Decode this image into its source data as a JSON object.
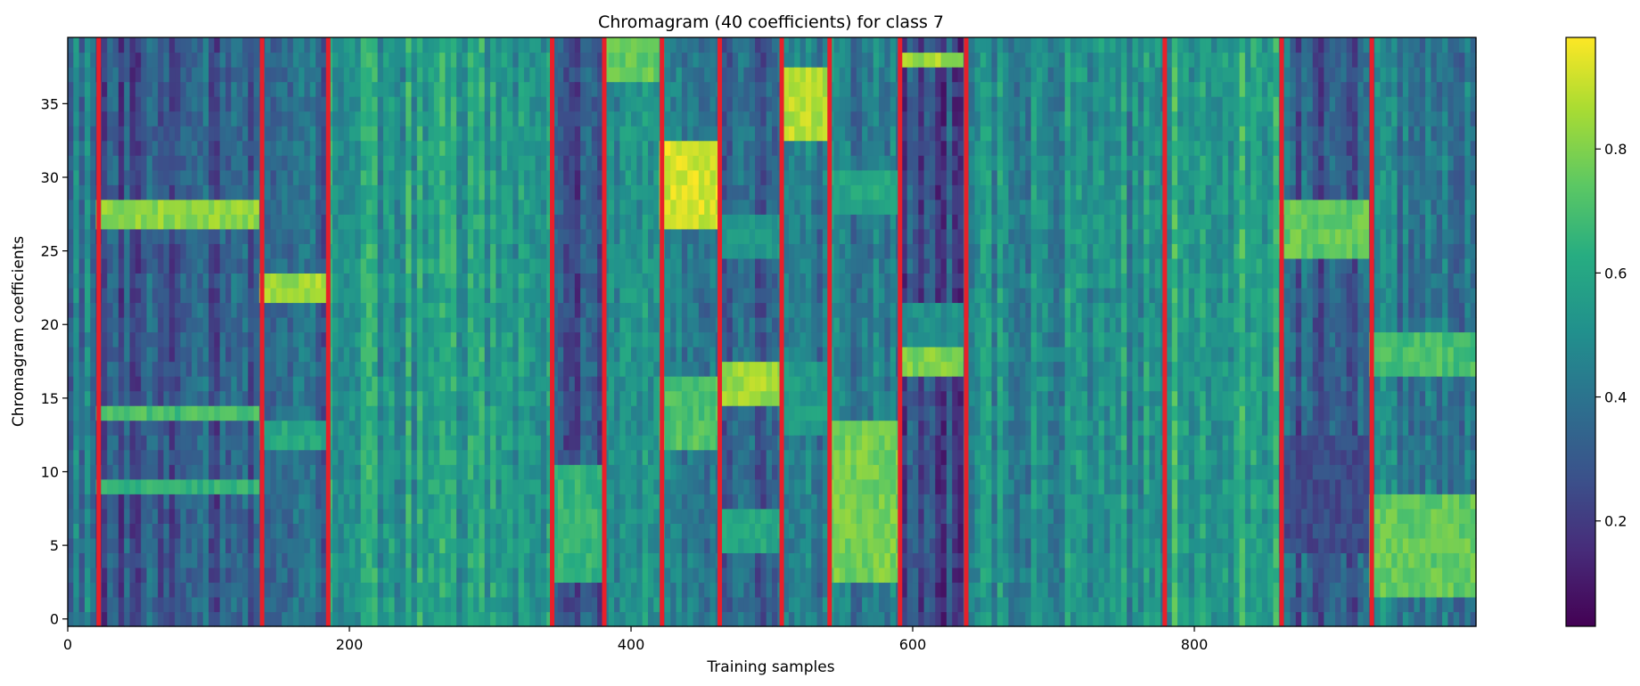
{
  "chart_data": {
    "type": "heatmap",
    "title": "Chromagram (40 coefficients) for class 7",
    "xlabel": "Training samples",
    "ylabel": "Chromagram coefficients",
    "xlim": [
      0,
      1000
    ],
    "ylim": [
      -0.5,
      39.5
    ],
    "x_ticks": [
      0,
      200,
      400,
      600,
      800
    ],
    "y_ticks": [
      0,
      5,
      10,
      15,
      20,
      25,
      30,
      35
    ],
    "colormap": "viridis",
    "colorbar": {
      "range": [
        0.03,
        0.98
      ],
      "ticks": [
        0.2,
        0.4,
        0.6,
        0.8
      ]
    },
    "boundary_color": "#e8202a",
    "boundaries": [
      22,
      138,
      185,
      344,
      381,
      422,
      463,
      507,
      541,
      591,
      638,
      779,
      862,
      926
    ],
    "segments": [
      {
        "x": [
          0,
          22
        ],
        "base": 0.42,
        "bands": []
      },
      {
        "x": [
          22,
          138
        ],
        "base": 0.3,
        "bands": [
          [
            26.5,
            28,
            0.82
          ],
          [
            13.5,
            14.5,
            0.7
          ],
          [
            8.5,
            9.5,
            0.65
          ]
        ]
      },
      {
        "x": [
          138,
          185
        ],
        "base": 0.35,
        "bands": [
          [
            21.5,
            23.5,
            0.85
          ],
          [
            11.5,
            13.5,
            0.6
          ]
        ]
      },
      {
        "x": [
          185,
          344
        ],
        "base": 0.55,
        "bands": []
      },
      {
        "x": [
          344,
          381
        ],
        "base": 0.3,
        "bands": [
          [
            3,
            10,
            0.65
          ]
        ]
      },
      {
        "x": [
          381,
          422
        ],
        "base": 0.5,
        "bands": [
          [
            37,
            39,
            0.75
          ]
        ]
      },
      {
        "x": [
          422,
          463
        ],
        "base": 0.4,
        "bands": [
          [
            27,
            32,
            0.92
          ],
          [
            11.5,
            16,
            0.72
          ]
        ]
      },
      {
        "x": [
          463,
          507
        ],
        "base": 0.35,
        "bands": [
          [
            15,
            17.5,
            0.85
          ],
          [
            25,
            27,
            0.55
          ],
          [
            5,
            7.5,
            0.6
          ]
        ]
      },
      {
        "x": [
          507,
          541
        ],
        "base": 0.4,
        "bands": [
          [
            33,
            37,
            0.88
          ],
          [
            13,
            17,
            0.55
          ]
        ]
      },
      {
        "x": [
          541,
          591
        ],
        "base": 0.45,
        "bands": [
          [
            3,
            13,
            0.78
          ],
          [
            28,
            30,
            0.6
          ]
        ]
      },
      {
        "x": [
          591,
          638
        ],
        "base": 0.25,
        "bands": [
          [
            37.5,
            38.5,
            0.85
          ],
          [
            17,
            19,
            0.8
          ],
          [
            19,
            21.5,
            0.5
          ]
        ]
      },
      {
        "x": [
          638,
          779
        ],
        "base": 0.5,
        "bands": []
      },
      {
        "x": [
          779,
          862
        ],
        "base": 0.6,
        "bands": []
      },
      {
        "x": [
          862,
          926
        ],
        "base": 0.32,
        "bands": [
          [
            24.5,
            28,
            0.75
          ],
          [
            5,
            12,
            0.25
          ]
        ]
      },
      {
        "x": [
          926,
          1000
        ],
        "base": 0.42,
        "bands": [
          [
            2,
            8,
            0.75
          ],
          [
            17,
            19,
            0.7
          ]
        ]
      }
    ]
  }
}
